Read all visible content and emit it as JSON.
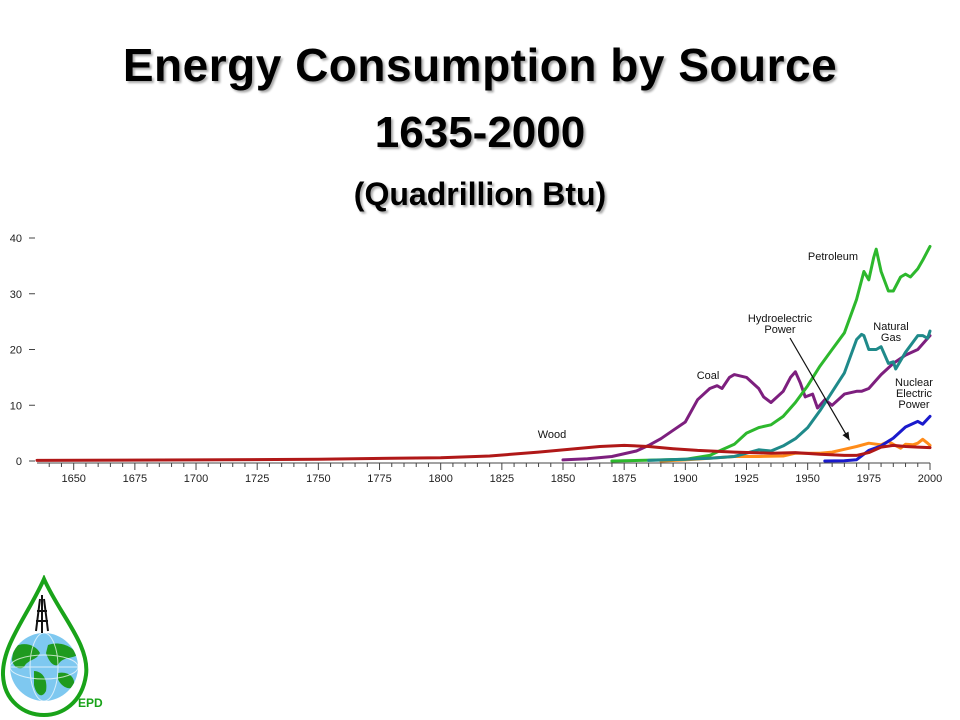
{
  "slide": {
    "title_line1": "Energy Consumption by Source",
    "title_line2": "1635-2000",
    "title_line3": "(Quadrillion Btu)"
  },
  "logo": {
    "text": "EPD",
    "icon": "water-drop-globe-logo"
  },
  "colors": {
    "wood": "#b01818",
    "coal": "#7d1f7e",
    "petroleum": "#2db82d",
    "natural_gas": "#1f8a8a",
    "hydro": "#ff8c1a",
    "nuclear": "#1a1acc",
    "axis": "#444444",
    "logo_green": "#19a319"
  },
  "chart_data": {
    "type": "line",
    "xlim": [
      1635,
      2000
    ],
    "ylim": [
      0,
      40
    ],
    "xticks": [
      1650,
      1675,
      1700,
      1725,
      1750,
      1775,
      1800,
      1825,
      1850,
      1875,
      1900,
      1925,
      1950,
      1975,
      2000
    ],
    "yticks": [
      0,
      10,
      20,
      30,
      40
    ],
    "grid": false,
    "annotations": [
      {
        "text": "Hydroelectric Power",
        "lines": [
          "Hydroelectric",
          "Power"
        ],
        "arrow_to": [
          1972,
          3
        ]
      }
    ],
    "series": [
      {
        "name": "Wood",
        "color_key": "wood",
        "label_lines": [
          "Wood"
        ],
        "points": [
          [
            1635,
            0.1
          ],
          [
            1700,
            0.2
          ],
          [
            1750,
            0.3
          ],
          [
            1780,
            0.5
          ],
          [
            1800,
            0.6
          ],
          [
            1820,
            0.9
          ],
          [
            1840,
            1.6
          ],
          [
            1855,
            2.2
          ],
          [
            1865,
            2.6
          ],
          [
            1875,
            2.8
          ],
          [
            1885,
            2.6
          ],
          [
            1895,
            2.2
          ],
          [
            1905,
            1.9
          ],
          [
            1920,
            1.6
          ],
          [
            1935,
            1.4
          ],
          [
            1945,
            1.5
          ],
          [
            1955,
            1.2
          ],
          [
            1965,
            1.0
          ],
          [
            1970,
            1.0
          ],
          [
            1975,
            1.5
          ],
          [
            1980,
            2.5
          ],
          [
            1985,
            2.8
          ],
          [
            1990,
            2.6
          ],
          [
            1995,
            2.5
          ],
          [
            2000,
            2.4
          ]
        ]
      },
      {
        "name": "Coal",
        "color_key": "coal",
        "label_lines": [
          "Coal"
        ],
        "points": [
          [
            1850,
            0.2
          ],
          [
            1860,
            0.4
          ],
          [
            1870,
            0.8
          ],
          [
            1880,
            1.8
          ],
          [
            1885,
            2.8
          ],
          [
            1890,
            4
          ],
          [
            1895,
            5.5
          ],
          [
            1900,
            7
          ],
          [
            1905,
            11
          ],
          [
            1910,
            13
          ],
          [
            1913,
            13.5
          ],
          [
            1915,
            13
          ],
          [
            1918,
            15
          ],
          [
            1920,
            15.5
          ],
          [
            1925,
            15
          ],
          [
            1930,
            13
          ],
          [
            1932,
            11.5
          ],
          [
            1935,
            10.5
          ],
          [
            1940,
            12.5
          ],
          [
            1943,
            15
          ],
          [
            1945,
            16
          ],
          [
            1947,
            14
          ],
          [
            1949,
            11.5
          ],
          [
            1952,
            12
          ],
          [
            1954,
            9.5
          ],
          [
            1957,
            11
          ],
          [
            1960,
            10
          ],
          [
            1965,
            12
          ],
          [
            1970,
            12.5
          ],
          [
            1972,
            12.5
          ],
          [
            1975,
            13
          ],
          [
            1980,
            15.5
          ],
          [
            1985,
            17.5
          ],
          [
            1990,
            19
          ],
          [
            1995,
            20
          ],
          [
            2000,
            22.5
          ]
        ]
      },
      {
        "name": "Petroleum",
        "color_key": "petroleum",
        "label_lines": [
          "Petroleum"
        ],
        "points": [
          [
            1870,
            0
          ],
          [
            1890,
            0.2
          ],
          [
            1900,
            0.3
          ],
          [
            1910,
            1
          ],
          [
            1915,
            2
          ],
          [
            1920,
            3
          ],
          [
            1925,
            5
          ],
          [
            1930,
            6
          ],
          [
            1935,
            6.5
          ],
          [
            1940,
            8
          ],
          [
            1945,
            10.5
          ],
          [
            1950,
            13.5
          ],
          [
            1955,
            17
          ],
          [
            1960,
            20
          ],
          [
            1965,
            23
          ],
          [
            1970,
            29
          ],
          [
            1973,
            34
          ],
          [
            1975,
            32.5
          ],
          [
            1977,
            36.5
          ],
          [
            1978,
            38
          ],
          [
            1980,
            34
          ],
          [
            1983,
            30.5
          ],
          [
            1985,
            30.5
          ],
          [
            1988,
            33
          ],
          [
            1990,
            33.5
          ],
          [
            1992,
            33
          ],
          [
            1995,
            34.5
          ],
          [
            1997,
            36
          ],
          [
            2000,
            38.5
          ]
        ]
      },
      {
        "name": "Natural Gas",
        "color_key": "natural_gas",
        "label_lines": [
          "Natural",
          "Gas"
        ],
        "points": [
          [
            1885,
            0.1
          ],
          [
            1900,
            0.3
          ],
          [
            1910,
            0.5
          ],
          [
            1920,
            0.8
          ],
          [
            1930,
            2
          ],
          [
            1935,
            1.8
          ],
          [
            1940,
            2.7
          ],
          [
            1945,
            4
          ],
          [
            1950,
            6
          ],
          [
            1955,
            9
          ],
          [
            1960,
            12.4
          ],
          [
            1965,
            15.8
          ],
          [
            1970,
            21.8
          ],
          [
            1972,
            22.7
          ],
          [
            1973,
            22.5
          ],
          [
            1975,
            20
          ],
          [
            1978,
            20
          ],
          [
            1980,
            20.5
          ],
          [
            1983,
            17.5
          ],
          [
            1985,
            17.8
          ],
          [
            1986,
            16.5
          ],
          [
            1990,
            19.5
          ],
          [
            1995,
            22.5
          ],
          [
            1997,
            22.5
          ],
          [
            1999,
            22
          ],
          [
            2000,
            23.3
          ]
        ]
      },
      {
        "name": "Hydroelectric Power",
        "color_key": "hydro",
        "label_lines": [],
        "points": [
          [
            1890,
            0
          ],
          [
            1900,
            0.2
          ],
          [
            1910,
            0.5
          ],
          [
            1920,
            0.8
          ],
          [
            1930,
            0.8
          ],
          [
            1940,
            0.9
          ],
          [
            1945,
            1.4
          ],
          [
            1950,
            1.4
          ],
          [
            1955,
            1.4
          ],
          [
            1960,
            1.6
          ],
          [
            1965,
            2.1
          ],
          [
            1970,
            2.6
          ],
          [
            1975,
            3.2
          ],
          [
            1980,
            2.9
          ],
          [
            1983,
            3.5
          ],
          [
            1985,
            3.0
          ],
          [
            1988,
            2.3
          ],
          [
            1990,
            3.0
          ],
          [
            1993,
            2.9
          ],
          [
            1995,
            3.2
          ],
          [
            1997,
            3.9
          ],
          [
            1999,
            3.2
          ],
          [
            2000,
            2.8
          ]
        ]
      },
      {
        "name": "Nuclear Electric Power",
        "color_key": "nuclear",
        "label_lines": [
          "Nuclear",
          "Electric",
          "Power"
        ],
        "points": [
          [
            1957,
            0
          ],
          [
            1965,
            0.05
          ],
          [
            1970,
            0.24
          ],
          [
            1975,
            1.9
          ],
          [
            1980,
            2.7
          ],
          [
            1985,
            4.1
          ],
          [
            1990,
            6.1
          ],
          [
            1995,
            7.1
          ],
          [
            1997,
            6.6
          ],
          [
            2000,
            8.0
          ]
        ]
      }
    ]
  }
}
